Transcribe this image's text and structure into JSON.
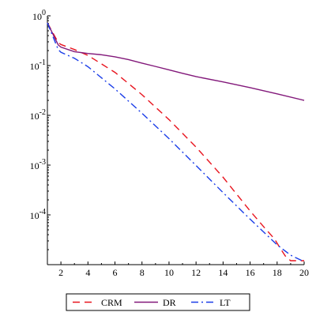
{
  "chart_data": {
    "type": "line",
    "title": "",
    "xlabel": "",
    "ylabel": "",
    "x_scale": "linear",
    "y_scale": "log",
    "xlim": [
      1,
      20
    ],
    "ylim": [
      1e-05,
      1
    ],
    "grid": false,
    "legend_position": "bottom",
    "x_ticks": [
      2,
      4,
      6,
      8,
      10,
      12,
      14,
      16,
      18,
      20
    ],
    "y_ticks": [
      {
        "base": "10",
        "exp": "0",
        "value": 1
      },
      {
        "base": "10",
        "exp": "-1",
        "value": 0.1
      },
      {
        "base": "10",
        "exp": "-2",
        "value": 0.01
      },
      {
        "base": "10",
        "exp": "-3",
        "value": 0.001
      },
      {
        "base": "10",
        "exp": "-4",
        "value": 0.0001
      }
    ],
    "series": [
      {
        "name": "CRM",
        "color": "#e8141e",
        "dash": "dash",
        "points": [
          [
            1,
            0.72
          ],
          [
            1.8,
            0.29
          ],
          [
            2,
            0.265
          ],
          [
            3,
            0.21
          ],
          [
            4,
            0.16
          ],
          [
            6,
            0.073
          ],
          [
            8,
            0.026
          ],
          [
            10,
            0.0082
          ],
          [
            12,
            0.0023
          ],
          [
            14,
            0.00057
          ],
          [
            16,
            0.00012
          ],
          [
            17,
            5.8e-05
          ],
          [
            17.8,
            3.3e-05
          ],
          [
            18.2,
            2.2e-05
          ],
          [
            18.6,
            1.5e-05
          ],
          [
            19,
            1.2e-05
          ],
          [
            20,
            1.2e-05
          ]
        ]
      },
      {
        "name": "DR",
        "color": "#82187a",
        "dash": "solid",
        "points": [
          [
            1,
            0.72
          ],
          [
            1.8,
            0.26
          ],
          [
            2,
            0.235
          ],
          [
            3,
            0.19
          ],
          [
            4,
            0.175
          ],
          [
            5,
            0.165
          ],
          [
            6,
            0.15
          ],
          [
            7,
            0.132
          ],
          [
            8,
            0.112
          ],
          [
            9,
            0.096
          ],
          [
            10,
            0.082
          ],
          [
            11,
            0.07
          ],
          [
            12,
            0.06
          ],
          [
            14,
            0.047
          ],
          [
            16,
            0.036
          ],
          [
            18,
            0.027
          ],
          [
            20,
            0.02
          ]
        ]
      },
      {
        "name": "LT",
        "color": "#1a3de8",
        "dash": "dashdot",
        "points": [
          [
            1,
            0.72
          ],
          [
            1.8,
            0.21
          ],
          [
            2,
            0.185
          ],
          [
            3,
            0.14
          ],
          [
            4,
            0.095
          ],
          [
            6,
            0.034
          ],
          [
            8,
            0.011
          ],
          [
            10,
            0.0034
          ],
          [
            12,
            0.00098
          ],
          [
            14,
            0.00028
          ],
          [
            16,
            8.2e-05
          ],
          [
            18,
            2.5e-05
          ],
          [
            19,
            1.55e-05
          ],
          [
            20,
            1.15e-05
          ]
        ]
      }
    ]
  }
}
